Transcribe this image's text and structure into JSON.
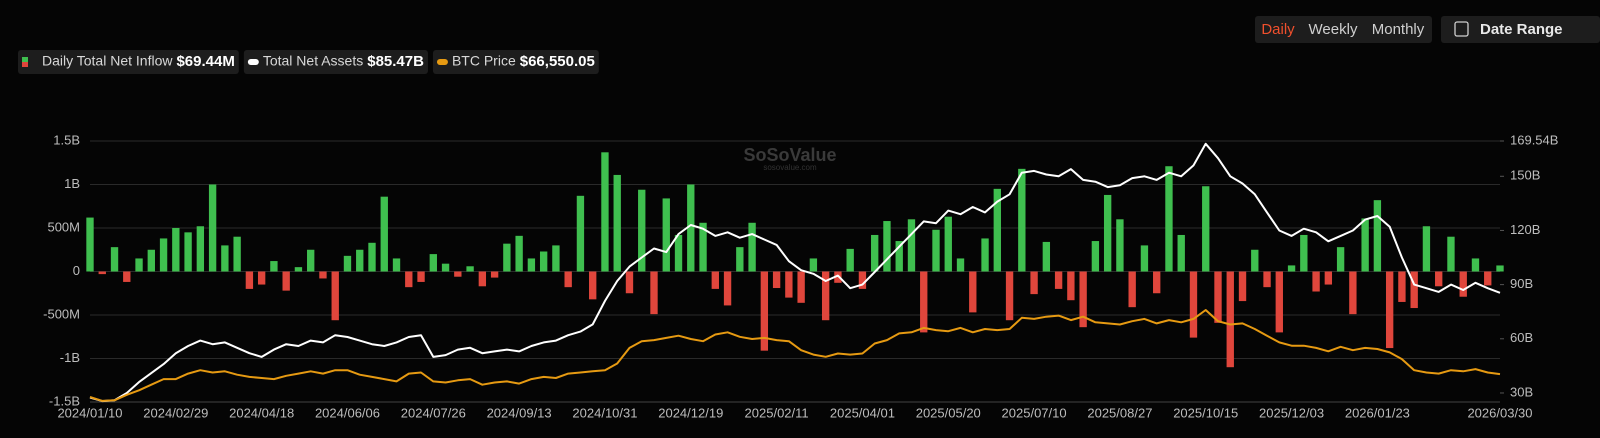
{
  "controls": {
    "periods": [
      "Daily",
      "Weekly",
      "Monthly"
    ],
    "active": "Daily",
    "date_range": "Date Range"
  },
  "chart_data": {
    "type": "combo",
    "watermark": "SoSoValue",
    "watermark_sub": "sosovalue.com",
    "grid": true,
    "categories": [
      "2024/01/10",
      null,
      null,
      null,
      null,
      null,
      null,
      "2024/02/29",
      null,
      null,
      null,
      null,
      null,
      null,
      "2024/04/18",
      null,
      null,
      null,
      null,
      null,
      null,
      "2024/06/06",
      null,
      null,
      null,
      null,
      null,
      null,
      "2024/07/26",
      null,
      null,
      null,
      null,
      null,
      null,
      "2024/09/13",
      null,
      null,
      null,
      null,
      null,
      null,
      "2024/10/31",
      null,
      null,
      null,
      null,
      null,
      null,
      "2024/12/19",
      null,
      null,
      null,
      null,
      null,
      null,
      "2025/02/11",
      null,
      null,
      null,
      null,
      null,
      null,
      "2025/04/01",
      null,
      null,
      null,
      null,
      null,
      null,
      "2025/05/20",
      null,
      null,
      null,
      null,
      null,
      null,
      "2025/07/10",
      null,
      null,
      null,
      null,
      null,
      null,
      "2025/08/27",
      null,
      null,
      null,
      null,
      null,
      null,
      "2025/10/15",
      null,
      null,
      null,
      null,
      null,
      null,
      "2025/12/03",
      null,
      null,
      null,
      null,
      null,
      null,
      "2026/01/23",
      null,
      null,
      null,
      null,
      null,
      null,
      null,
      null,
      null,
      "2026/03/30"
    ],
    "ylim": [
      -1500,
      1500
    ],
    "yticks": [
      {
        "value": -1500,
        "label": "-1.5B"
      },
      {
        "value": -1000,
        "label": "-1B"
      },
      {
        "value": -500,
        "label": "-500M"
      },
      0,
      {
        "value": 500,
        "label": "500M"
      },
      {
        "value": 1000,
        "label": "1B"
      },
      {
        "value": 1500,
        "label": "1.5B"
      }
    ],
    "y2lim": [
      25,
      169.54
    ],
    "y2ticks": [
      {
        "value": 30,
        "label": "30B"
      },
      {
        "value": 60,
        "label": "60B"
      },
      {
        "value": 90,
        "label": "90B"
      },
      {
        "value": 120,
        "label": "120B"
      },
      {
        "value": 150,
        "label": "150B"
      },
      {
        "value": 169.54,
        "label": "169.54B"
      }
    ],
    "y3lim": [
      41500,
      275600
    ],
    "series": [
      {
        "name": "Daily Total Net Inflow",
        "current": "$69.44M",
        "type": "bar",
        "axis": "y",
        "color": "#3fbf4f",
        "negative_color": "#e0463c",
        "values": [
          620,
          -30,
          280,
          -120,
          150,
          250,
          380,
          500,
          450,
          520,
          1000,
          300,
          400,
          -200,
          -150,
          120,
          -220,
          50,
          250,
          -80,
          -560,
          180,
          250,
          330,
          860,
          150,
          -180,
          -120,
          200,
          90,
          -60,
          60,
          -170,
          -70,
          320,
          410,
          150,
          230,
          300,
          -180,
          870,
          -320,
          1370,
          1110,
          -250,
          940,
          -490,
          840,
          420,
          1000,
          560,
          -200,
          -390,
          280,
          560,
          -910,
          -190,
          -300,
          -360,
          150,
          -560,
          -130,
          260,
          -200,
          420,
          580,
          350,
          600,
          -700,
          480,
          630,
          150,
          -470,
          380,
          950,
          -560,
          1180,
          -260,
          340,
          -200,
          -330,
          -640,
          350,
          880,
          600,
          -410,
          300,
          -250,
          1210,
          420,
          -760,
          980,
          -590,
          -1100,
          -340,
          250,
          -180,
          -700,
          70,
          420,
          -230,
          -150,
          280,
          -490,
          610,
          820,
          -880,
          -350,
          -420,
          520,
          -170,
          400,
          -290,
          150,
          -160,
          69.44
        ]
      },
      {
        "name": "Total Net Assets",
        "current": "$85.47B",
        "type": "line",
        "axis": "y2",
        "color": "#ffffff",
        "values": [
          27.5,
          25.5,
          26,
          30,
          36,
          41,
          46,
          52,
          56,
          59,
          57,
          58,
          55,
          52,
          50,
          54,
          57,
          56,
          59,
          58,
          62,
          61,
          59,
          57,
          56,
          58,
          61,
          62,
          50,
          51,
          54,
          55,
          52,
          53,
          54,
          53,
          56,
          58,
          59,
          62,
          64,
          68,
          81,
          92,
          100,
          105,
          110,
          108,
          118,
          123,
          121,
          117,
          119,
          116,
          118,
          115,
          112,
          103,
          98,
          96,
          92,
          95,
          88,
          90,
          97,
          104,
          111,
          118,
          125,
          124,
          131,
          129,
          133,
          130,
          136,
          140,
          152,
          153,
          151,
          150,
          154,
          148,
          147,
          144,
          145,
          149,
          150,
          148,
          152,
          150,
          156,
          168,
          160,
          150,
          146,
          140,
          130,
          120,
          117,
          121,
          119,
          114,
          117,
          120,
          126,
          128,
          122,
          105,
          90,
          88,
          86,
          90,
          87,
          91,
          88,
          85.47
        ]
      },
      {
        "name": "BTC Price",
        "current": "$66,550.05",
        "type": "line",
        "axis": "y3",
        "color": "#e69a12",
        "values": [
          46000,
          42500,
          43000,
          48000,
          52000,
          57000,
          62000,
          62000,
          67000,
          70000,
          68000,
          69000,
          66000,
          64000,
          63000,
          62000,
          65000,
          67000,
          69000,
          67000,
          70000,
          70000,
          66000,
          64000,
          62000,
          60000,
          67000,
          68000,
          60000,
          59000,
          61000,
          62000,
          57000,
          59000,
          60000,
          58000,
          62000,
          64000,
          63000,
          67000,
          68000,
          69000,
          70000,
          76000,
          90000,
          96000,
          97000,
          99000,
          101000,
          98000,
          96000,
          102000,
          104000,
          100000,
          98000,
          99000,
          97000,
          96000,
          88000,
          84000,
          82000,
          85000,
          84000,
          85000,
          94000,
          97000,
          103000,
          104000,
          108000,
          106000,
          105000,
          108000,
          104000,
          107000,
          106000,
          107000,
          117000,
          116000,
          118000,
          119000,
          115000,
          118000,
          113000,
          112000,
          111000,
          114000,
          116000,
          112000,
          115000,
          113000,
          116000,
          124000,
          114000,
          111000,
          112000,
          107000,
          101000,
          95000,
          92000,
          92000,
          90000,
          87000,
          91000,
          88000,
          90000,
          89000,
          86000,
          80000,
          70000,
          68000,
          67000,
          70000,
          69000,
          71000,
          68000,
          66550.05
        ]
      }
    ]
  }
}
